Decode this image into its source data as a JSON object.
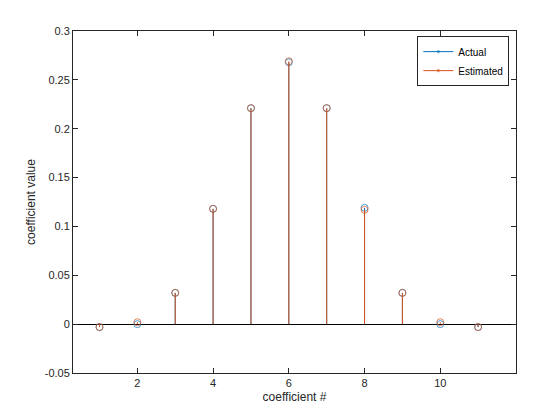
{
  "chart_data": {
    "type": "stem",
    "x_label": "coefficient #",
    "y_label": "coefficient value",
    "x": [
      1,
      2,
      3,
      4,
      5,
      6,
      7,
      8,
      9,
      10,
      11
    ],
    "series": [
      {
        "name": "Actual",
        "color": "#0072bd",
        "marker": "circle-open",
        "values": [
          -0.003,
          0.0,
          0.032,
          0.118,
          0.221,
          0.268,
          0.221,
          0.119,
          0.032,
          0.0,
          -0.003
        ]
      },
      {
        "name": "Estimated",
        "color": "#d95319",
        "marker": "circle-open",
        "values": [
          -0.003,
          0.002,
          0.032,
          0.118,
          0.221,
          0.269,
          0.221,
          0.117,
          0.032,
          0.002,
          -0.003
        ]
      }
    ],
    "xlim": [
      0.3,
      12.0
    ],
    "xticks": [
      2,
      4,
      6,
      8,
      10
    ],
    "ylim": [
      -0.05,
      0.3
    ],
    "yticks": [
      -0.05,
      0,
      0.05,
      0.1,
      0.15,
      0.2,
      0.25,
      0.3
    ],
    "grid": false,
    "legend": "upper right"
  }
}
